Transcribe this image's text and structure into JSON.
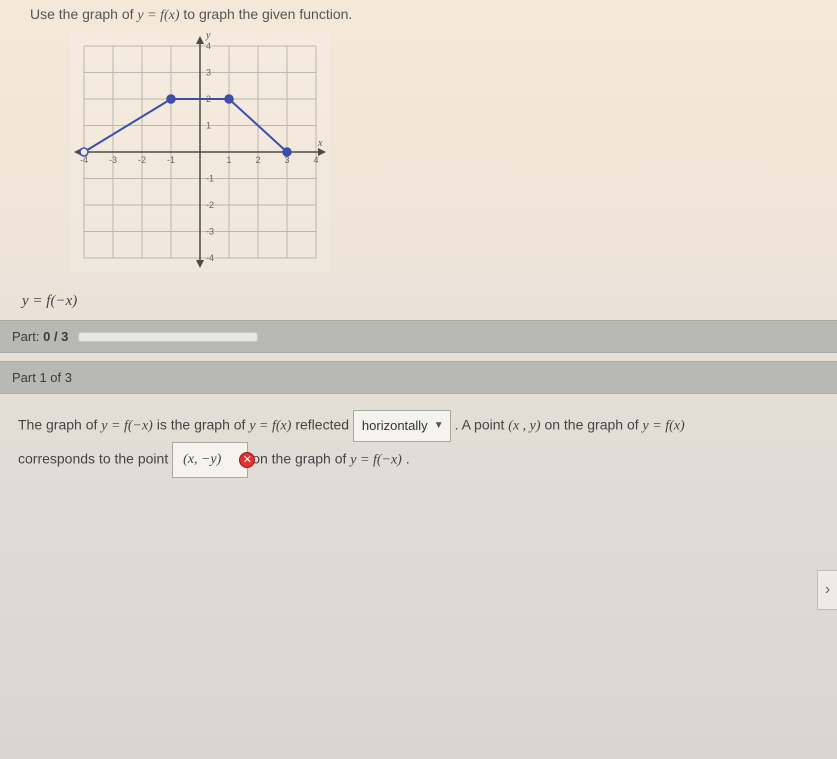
{
  "prompt_prefix": "Use the graph of ",
  "prompt_fn": "y = f(x)",
  "prompt_suffix": " to graph the given function.",
  "graph": {
    "type": "line",
    "xlim": [
      -4,
      4
    ],
    "ylim": [
      -4,
      4
    ],
    "xtick_step": 1,
    "ytick_step": 1,
    "axis_labels": {
      "x": "x",
      "y": "y"
    },
    "grid_color": "#b9b8b1",
    "axis_color": "#4a4a46",
    "tick_fontsize": 9,
    "line_color": "#3a4fa8",
    "line_width": 2,
    "marker_color": "#3a4fa8",
    "marker_radius": 4,
    "open_marker_fill": "#f5e8d8",
    "points": [
      {
        "x": -4,
        "y": 0,
        "open": true
      },
      {
        "x": -1,
        "y": 2,
        "open": false
      },
      {
        "x": 1,
        "y": 2,
        "open": false
      },
      {
        "x": 3,
        "y": 0,
        "open": false
      }
    ]
  },
  "given_function": "y = f(−x)",
  "progress": {
    "label": "Part:",
    "done": 0,
    "total": 3
  },
  "part_header": "Part 1 of 3",
  "sentence": {
    "s1a": "The graph of ",
    "fn_neg": "y = f(−x)",
    "s1b": " is the graph of ",
    "fn_base": "y = f(x)",
    "s1c": " reflected ",
    "dropdown_value": "horizontally",
    "s1d": ". A point ",
    "pt": "(x , y)",
    "s1e": " on the graph of ",
    "fn_base2": "y = f(x)",
    "s2a": "corresponds to the point ",
    "answer_value": "(x, −y)",
    "s2b": " on the graph of ",
    "fn_neg2": "y = f(−x)",
    "s2c": "."
  },
  "wrong_badge": "✕",
  "caret": "▼",
  "next_glyph": "›"
}
